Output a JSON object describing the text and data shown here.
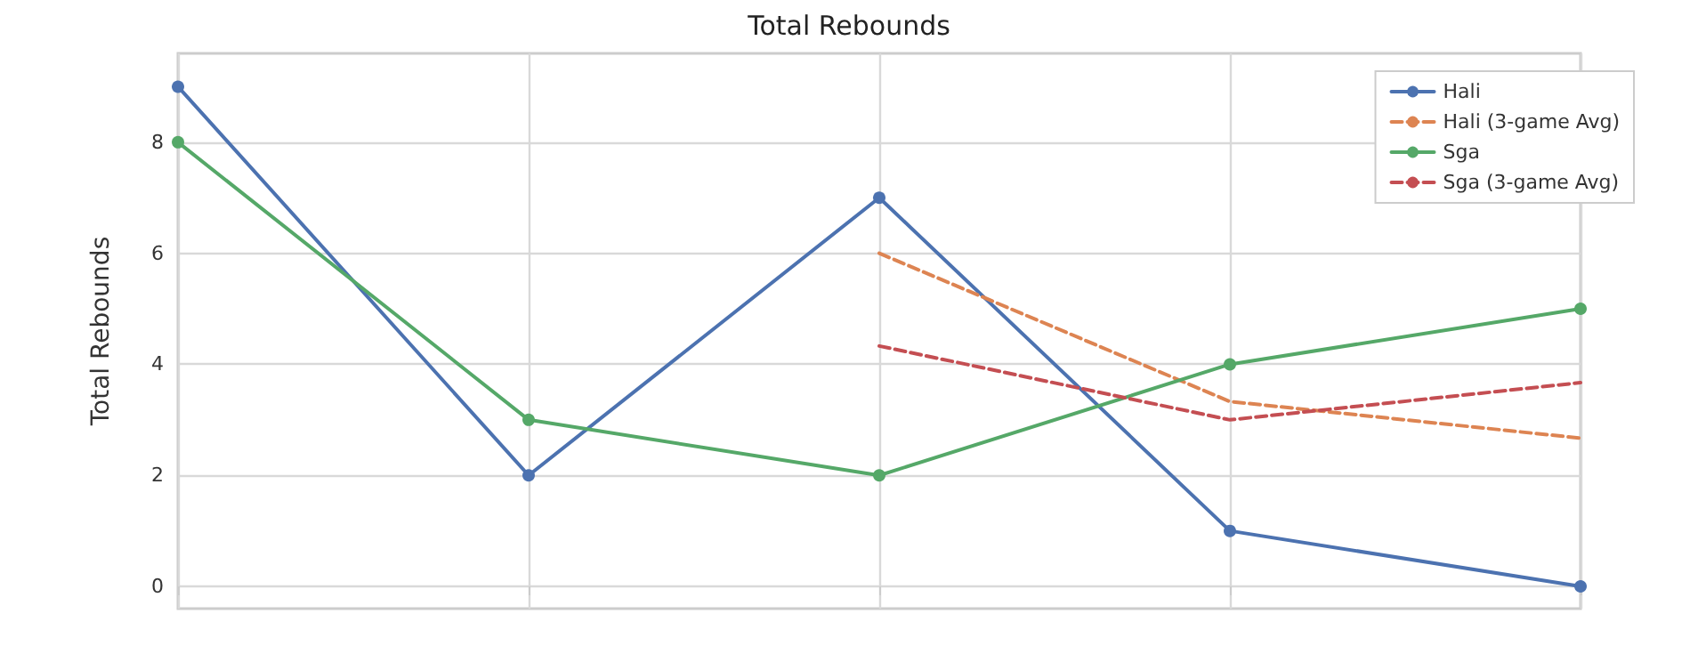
{
  "chart_data": {
    "type": "line",
    "title": "Total Rebounds",
    "ylabel": "Total Rebounds",
    "categories": [
      null,
      null,
      null,
      null,
      null
    ],
    "ylim": [
      -0.4,
      9.6
    ],
    "yticks": [
      0,
      2,
      4,
      6,
      8
    ],
    "grid": true,
    "legend": "top right",
    "series": [
      {
        "name": "Hali",
        "color": "#4c72b0",
        "values": [
          9,
          2,
          7,
          1,
          0
        ],
        "marker": "circle",
        "line_style": "solid"
      },
      {
        "name": "Hali (3-game Avg)",
        "color": "#dd8452",
        "values": [
          null,
          null,
          6,
          3.33,
          2.67
        ],
        "marker": "none",
        "line_style": "dashed"
      },
      {
        "name": "Sga",
        "color": "#55a868",
        "values": [
          8,
          3,
          2,
          4,
          5
        ],
        "marker": "circle",
        "line_style": "solid"
      },
      {
        "name": "Sga (3-game Avg)",
        "color": "#c44e52",
        "values": [
          null,
          null,
          4.33,
          3,
          3.67
        ],
        "marker": "none",
        "line_style": "dashed"
      }
    ]
  }
}
